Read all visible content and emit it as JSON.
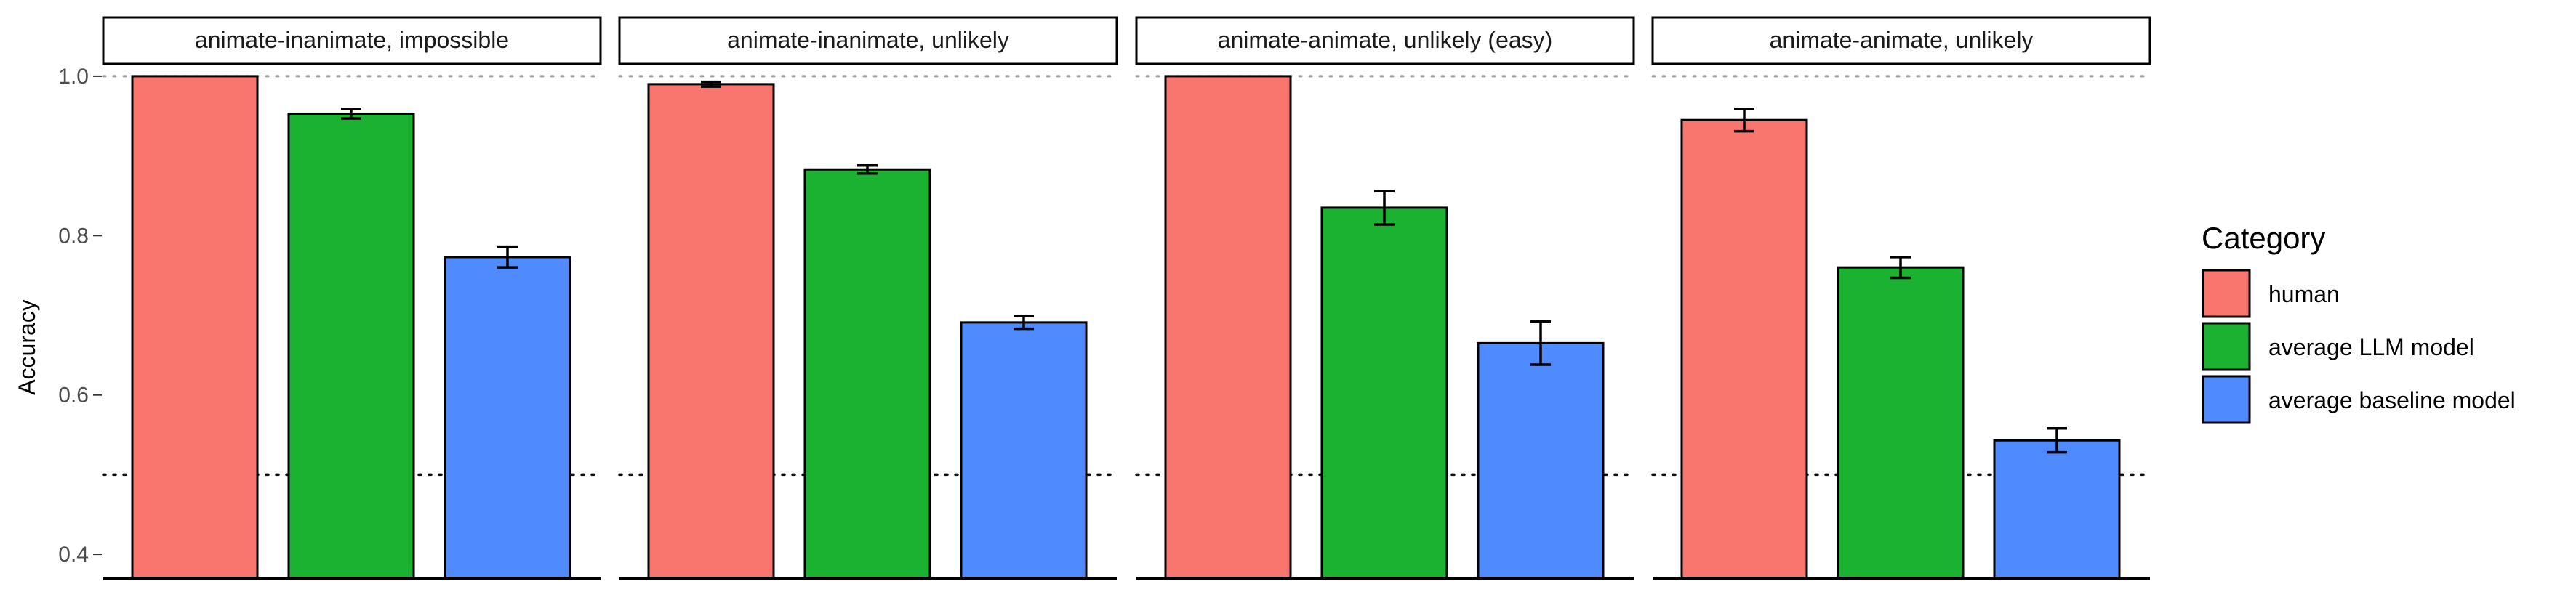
{
  "chart_data": {
    "type": "bar",
    "ylabel": "Accuracy",
    "ylim": [
      0.37,
      1.03
    ],
    "yticks": [
      "0.4",
      "0.6",
      "0.8",
      "1.0"
    ],
    "reference_lines": [
      1.0,
      0.5
    ],
    "legend": {
      "title": "Category",
      "placement": "right",
      "entries": [
        "human",
        "average LLM model",
        "average baseline model"
      ]
    },
    "colors": {
      "human": "#F8766D",
      "average LLM model": "#1BB131",
      "average baseline model": "#4F8BFF"
    },
    "panels": [
      {
        "title": "animate-inanimate, impossible",
        "values": [
          1.0,
          0.953,
          0.773
        ],
        "errors": [
          0.0,
          0.006,
          0.013
        ]
      },
      {
        "title": "animate-inanimate, unlikely",
        "values": [
          0.99,
          0.883,
          0.691
        ],
        "errors": [
          0.003,
          0.005,
          0.008
        ]
      },
      {
        "title": "animate-animate, unlikely (easy)",
        "values": [
          1.0,
          0.835,
          0.665
        ],
        "errors": [
          0.0,
          0.021,
          0.027
        ]
      },
      {
        "title": "animate-animate, unlikely",
        "values": [
          0.945,
          0.76,
          0.543
        ],
        "errors": [
          0.014,
          0.013,
          0.015
        ]
      }
    ]
  }
}
